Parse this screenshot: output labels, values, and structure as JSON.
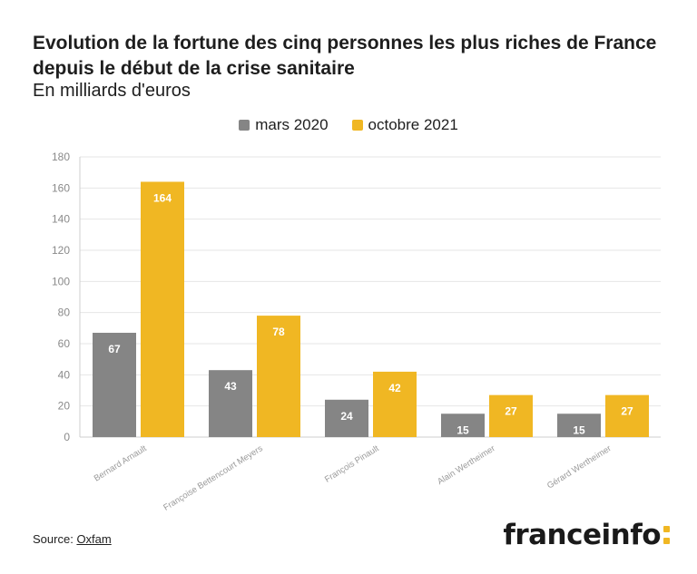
{
  "header": {
    "title": "Evolution de la fortune des cinq personnes les plus riches de France depuis le début de la crise sanitaire",
    "subtitle": "En milliards d'euros"
  },
  "colors": {
    "mars_2020": "#858585",
    "octobre_2021": "#f0b723",
    "grid": "#e6e6e6",
    "axis": "#cfcfcf",
    "tick_label": "#8a8a8a"
  },
  "chart_data": {
    "type": "bar",
    "categories": [
      "Bernard Arnault",
      "Françoise Bettencourt Meyers",
      "François Pinault",
      "Alain Wertheimer",
      "Gérard Wertheimer"
    ],
    "series": [
      {
        "name": "mars 2020",
        "values": [
          67,
          43,
          24,
          15,
          15
        ]
      },
      {
        "name": "octobre 2021",
        "values": [
          164,
          78,
          42,
          27,
          27
        ]
      }
    ],
    "yticks": [
      "0",
      "20",
      "40",
      "60",
      "80",
      "100",
      "120",
      "140",
      "160",
      "180"
    ],
    "ylim": [
      0,
      180
    ],
    "grid": true,
    "legend_position": "top-center"
  },
  "footer": {
    "source_label": "Source:",
    "source_link": "Oxfam",
    "logo_text": "franceinfo"
  }
}
